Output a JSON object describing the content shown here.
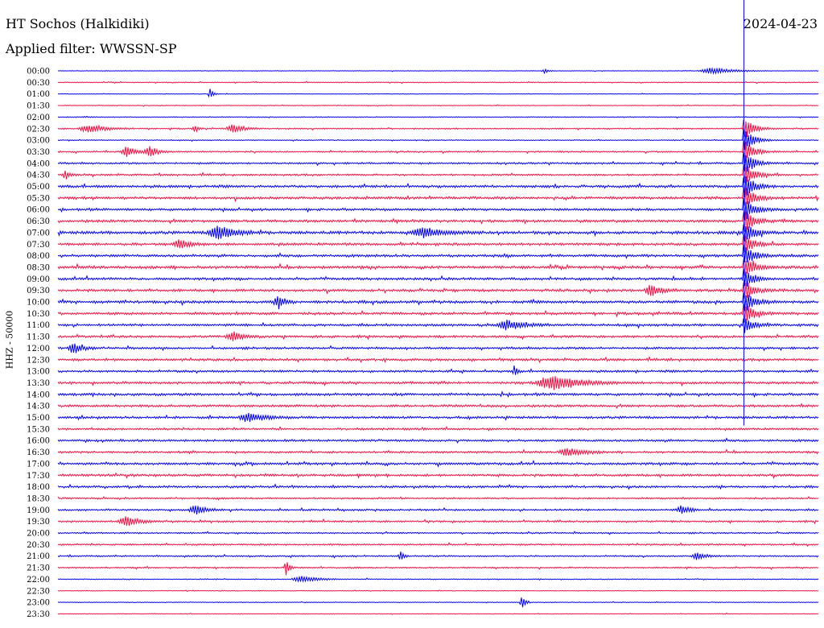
{
  "header": {
    "station": "HT Sochos (Halkidiki)",
    "date": "2024-04-23",
    "filter": "Applied filter: WWSSN-SP"
  },
  "colors": {
    "trace_a": "#0000ee",
    "trace_b": "#ee1144",
    "marker": "#0000ee",
    "background": "#ffffff",
    "text": "#000000"
  },
  "chart_data": {
    "type": "line",
    "title": "HT Sochos (Halkidiki)",
    "subtitle": "Applied filter: WWSSN-SP",
    "ylabel": "HHZ - 50000",
    "xlabel": "",
    "grid": false,
    "legend": "none",
    "row_labels": [
      "00:00",
      "00:30",
      "01:00",
      "01:30",
      "02:00",
      "02:30",
      "03:00",
      "03:30",
      "04:00",
      "04:30",
      "05:00",
      "05:30",
      "06:00",
      "06:30",
      "07:00",
      "07:30",
      "08:00",
      "08:30",
      "09:00",
      "09:30",
      "10:00",
      "10:30",
      "11:00",
      "11:30",
      "12:00",
      "12:30",
      "13:00",
      "13:30",
      "14:00",
      "14:30",
      "15:00",
      "15:30",
      "16:00",
      "16:30",
      "17:00",
      "17:30",
      "18:00",
      "18:30",
      "19:00",
      "19:30",
      "20:00",
      "20:30",
      "21:00",
      "21:30",
      "22:00",
      "22:30",
      "23:00",
      "23:30"
    ],
    "row_noise": [
      0.3,
      0.5,
      0.3,
      0.4,
      0.5,
      0.7,
      0.5,
      0.8,
      1.0,
      1.0,
      1.4,
      1.4,
      1.3,
      1.4,
      1.6,
      1.4,
      1.4,
      1.5,
      1.3,
      1.4,
      1.5,
      1.4,
      1.3,
      1.3,
      1.2,
      1.3,
      1.2,
      1.3,
      1.4,
      1.3,
      1.3,
      1.1,
      1.2,
      1.1,
      1.3,
      1.3,
      1.2,
      0.9,
      1.0,
      1.0,
      0.8,
      0.9,
      0.8,
      0.8,
      0.5,
      0.4,
      0.4,
      0.4
    ],
    "events": [
      {
        "row": 0,
        "pos": 0.64,
        "amp": 3,
        "width": 0.004
      },
      {
        "row": 0,
        "pos": 0.86,
        "amp": 4,
        "width": 0.02
      },
      {
        "row": 2,
        "pos": 0.2,
        "amp": 7,
        "width": 0.003
      },
      {
        "row": 5,
        "pos": 0.04,
        "amp": 5,
        "width": 0.015
      },
      {
        "row": 5,
        "pos": 0.18,
        "amp": 6,
        "width": 0.003
      },
      {
        "row": 5,
        "pos": 0.23,
        "amp": 5,
        "width": 0.01
      },
      {
        "row": 7,
        "pos": 0.09,
        "amp": 7,
        "width": 0.008
      },
      {
        "row": 7,
        "pos": 0.12,
        "amp": 7,
        "width": 0.008
      },
      {
        "row": 9,
        "pos": 0.01,
        "amp": 6,
        "width": 0.004
      },
      {
        "row": 14,
        "pos": 0.21,
        "amp": 9,
        "width": 0.015
      },
      {
        "row": 14,
        "pos": 0.48,
        "amp": 6,
        "width": 0.02
      },
      {
        "row": 15,
        "pos": 0.16,
        "amp": 6,
        "width": 0.01
      },
      {
        "row": 19,
        "pos": 0.78,
        "amp": 7,
        "width": 0.01
      },
      {
        "row": 20,
        "pos": 0.29,
        "amp": 9,
        "width": 0.006
      },
      {
        "row": 22,
        "pos": 0.59,
        "amp": 6,
        "width": 0.015
      },
      {
        "row": 23,
        "pos": 0.23,
        "amp": 6,
        "width": 0.01
      },
      {
        "row": 24,
        "pos": 0.02,
        "amp": 7,
        "width": 0.008
      },
      {
        "row": 26,
        "pos": 0.6,
        "amp": 6,
        "width": 0.003
      },
      {
        "row": 27,
        "pos": 0.65,
        "amp": 10,
        "width": 0.025
      },
      {
        "row": 30,
        "pos": 0.25,
        "amp": 6,
        "width": 0.015
      },
      {
        "row": 33,
        "pos": 0.67,
        "amp": 5,
        "width": 0.015
      },
      {
        "row": 38,
        "pos": 0.18,
        "amp": 6,
        "width": 0.01
      },
      {
        "row": 38,
        "pos": 0.82,
        "amp": 5,
        "width": 0.008
      },
      {
        "row": 39,
        "pos": 0.09,
        "amp": 6,
        "width": 0.012
      },
      {
        "row": 42,
        "pos": 0.45,
        "amp": 7,
        "width": 0.003
      },
      {
        "row": 42,
        "pos": 0.84,
        "amp": 5,
        "width": 0.008
      },
      {
        "row": 43,
        "pos": 0.3,
        "amp": 10,
        "width": 0.003
      },
      {
        "row": 44,
        "pos": 0.32,
        "amp": 4,
        "width": 0.015
      },
      {
        "row": 46,
        "pos": 0.61,
        "amp": 9,
        "width": 0.003
      }
    ],
    "main_event": {
      "pos": 0.902,
      "rows": [
        {
          "row": 5,
          "amp": 14
        },
        {
          "row": 6,
          "amp": 16
        },
        {
          "row": 7,
          "amp": 16
        },
        {
          "row": 8,
          "amp": 16
        },
        {
          "row": 9,
          "amp": 16
        },
        {
          "row": 10,
          "amp": 16
        },
        {
          "row": 11,
          "amp": 16
        },
        {
          "row": 12,
          "amp": 16
        },
        {
          "row": 13,
          "amp": 16
        },
        {
          "row": 14,
          "amp": 14
        },
        {
          "row": 15,
          "amp": 14
        },
        {
          "row": 16,
          "amp": 14
        },
        {
          "row": 17,
          "amp": 14
        },
        {
          "row": 18,
          "amp": 14
        },
        {
          "row": 19,
          "amp": 14
        },
        {
          "row": 20,
          "amp": 14
        },
        {
          "row": 21,
          "amp": 14
        },
        {
          "row": 22,
          "amp": 10
        }
      ]
    },
    "current_time_marker": {
      "pos": 0.902,
      "last_row": 30
    }
  }
}
